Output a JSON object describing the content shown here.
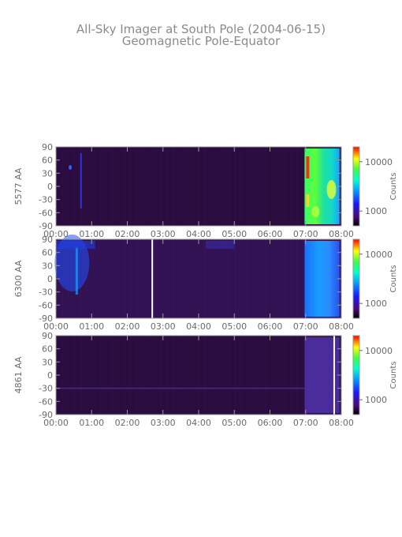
{
  "title": "All-Sky Imager at South Pole (2004-06-15)",
  "subtitle": "Geomagnetic Pole-Equator",
  "chart_data": {
    "type": "heatmap",
    "title": "All-Sky Imager at South Pole (2004-06-15)",
    "subtitle": "Geomagnetic Pole-Equator",
    "x_ticks": [
      "00:00",
      "01:00",
      "02:00",
      "03:00",
      "04:00",
      "05:00",
      "06:00",
      "07:00",
      "08:00"
    ],
    "xlim": [
      0,
      8
    ],
    "y_ticks": [
      90,
      60,
      30,
      0,
      -30,
      -60,
      -90
    ],
    "ylim": [
      -90,
      90
    ],
    "colorbar_label": "Counts",
    "colorbar_ticks": [
      10000,
      1000
    ],
    "colorbar_scale": "log",
    "colorbar_range": [
      500,
      20000
    ],
    "panels": [
      {
        "ylabel": "5577 AA",
        "background_counts": 600,
        "bright_interval_hours": [
          6.97,
          7.95
        ],
        "bright_level": "high (about 5000-15000 counts, green/yellow with red spots)",
        "gap_hours": []
      },
      {
        "ylabel": "6300 AA",
        "background_counts": 700,
        "bright_interval_hours": [
          6.97,
          7.95
        ],
        "bright_level": "moderate (about 1500-3000 counts, blue/cyan)",
        "gap_hours": [
          2.7
        ]
      },
      {
        "ylabel": "4861 AA",
        "background_counts": 550,
        "bright_interval_hours": [
          6.97,
          7.95
        ],
        "bright_level": "slightly elevated (about 700 counts, purple)",
        "gap_hours": [
          7.8
        ]
      }
    ]
  }
}
